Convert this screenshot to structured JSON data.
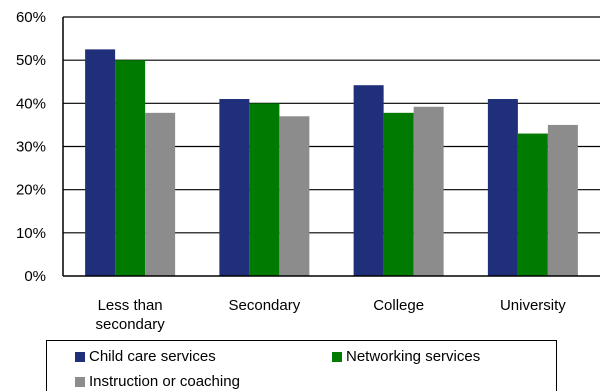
{
  "chart_data": {
    "type": "bar",
    "categories": [
      "Less than secondary",
      "Secondary",
      "College",
      "University"
    ],
    "category_lines": [
      [
        "Less than",
        "secondary"
      ],
      [
        "Secondary"
      ],
      [
        "College"
      ],
      [
        "University"
      ]
    ],
    "series": [
      {
        "name": "Child care services",
        "color": "#1f2f7a",
        "values": [
          52.5,
          41,
          44.2,
          41
        ]
      },
      {
        "name": "Networking services",
        "color": "#007a00",
        "values": [
          50,
          40,
          37.8,
          33
        ]
      },
      {
        "name": "Instruction or coaching",
        "color": "#8c8c8c",
        "values": [
          37.8,
          37,
          39.2,
          35
        ]
      }
    ],
    "y_ticks": [
      "0%",
      "10%",
      "20%",
      "30%",
      "40%",
      "50%",
      "60%"
    ],
    "ylim": [
      0,
      60
    ],
    "grid": true,
    "legend_position": "bottom"
  }
}
